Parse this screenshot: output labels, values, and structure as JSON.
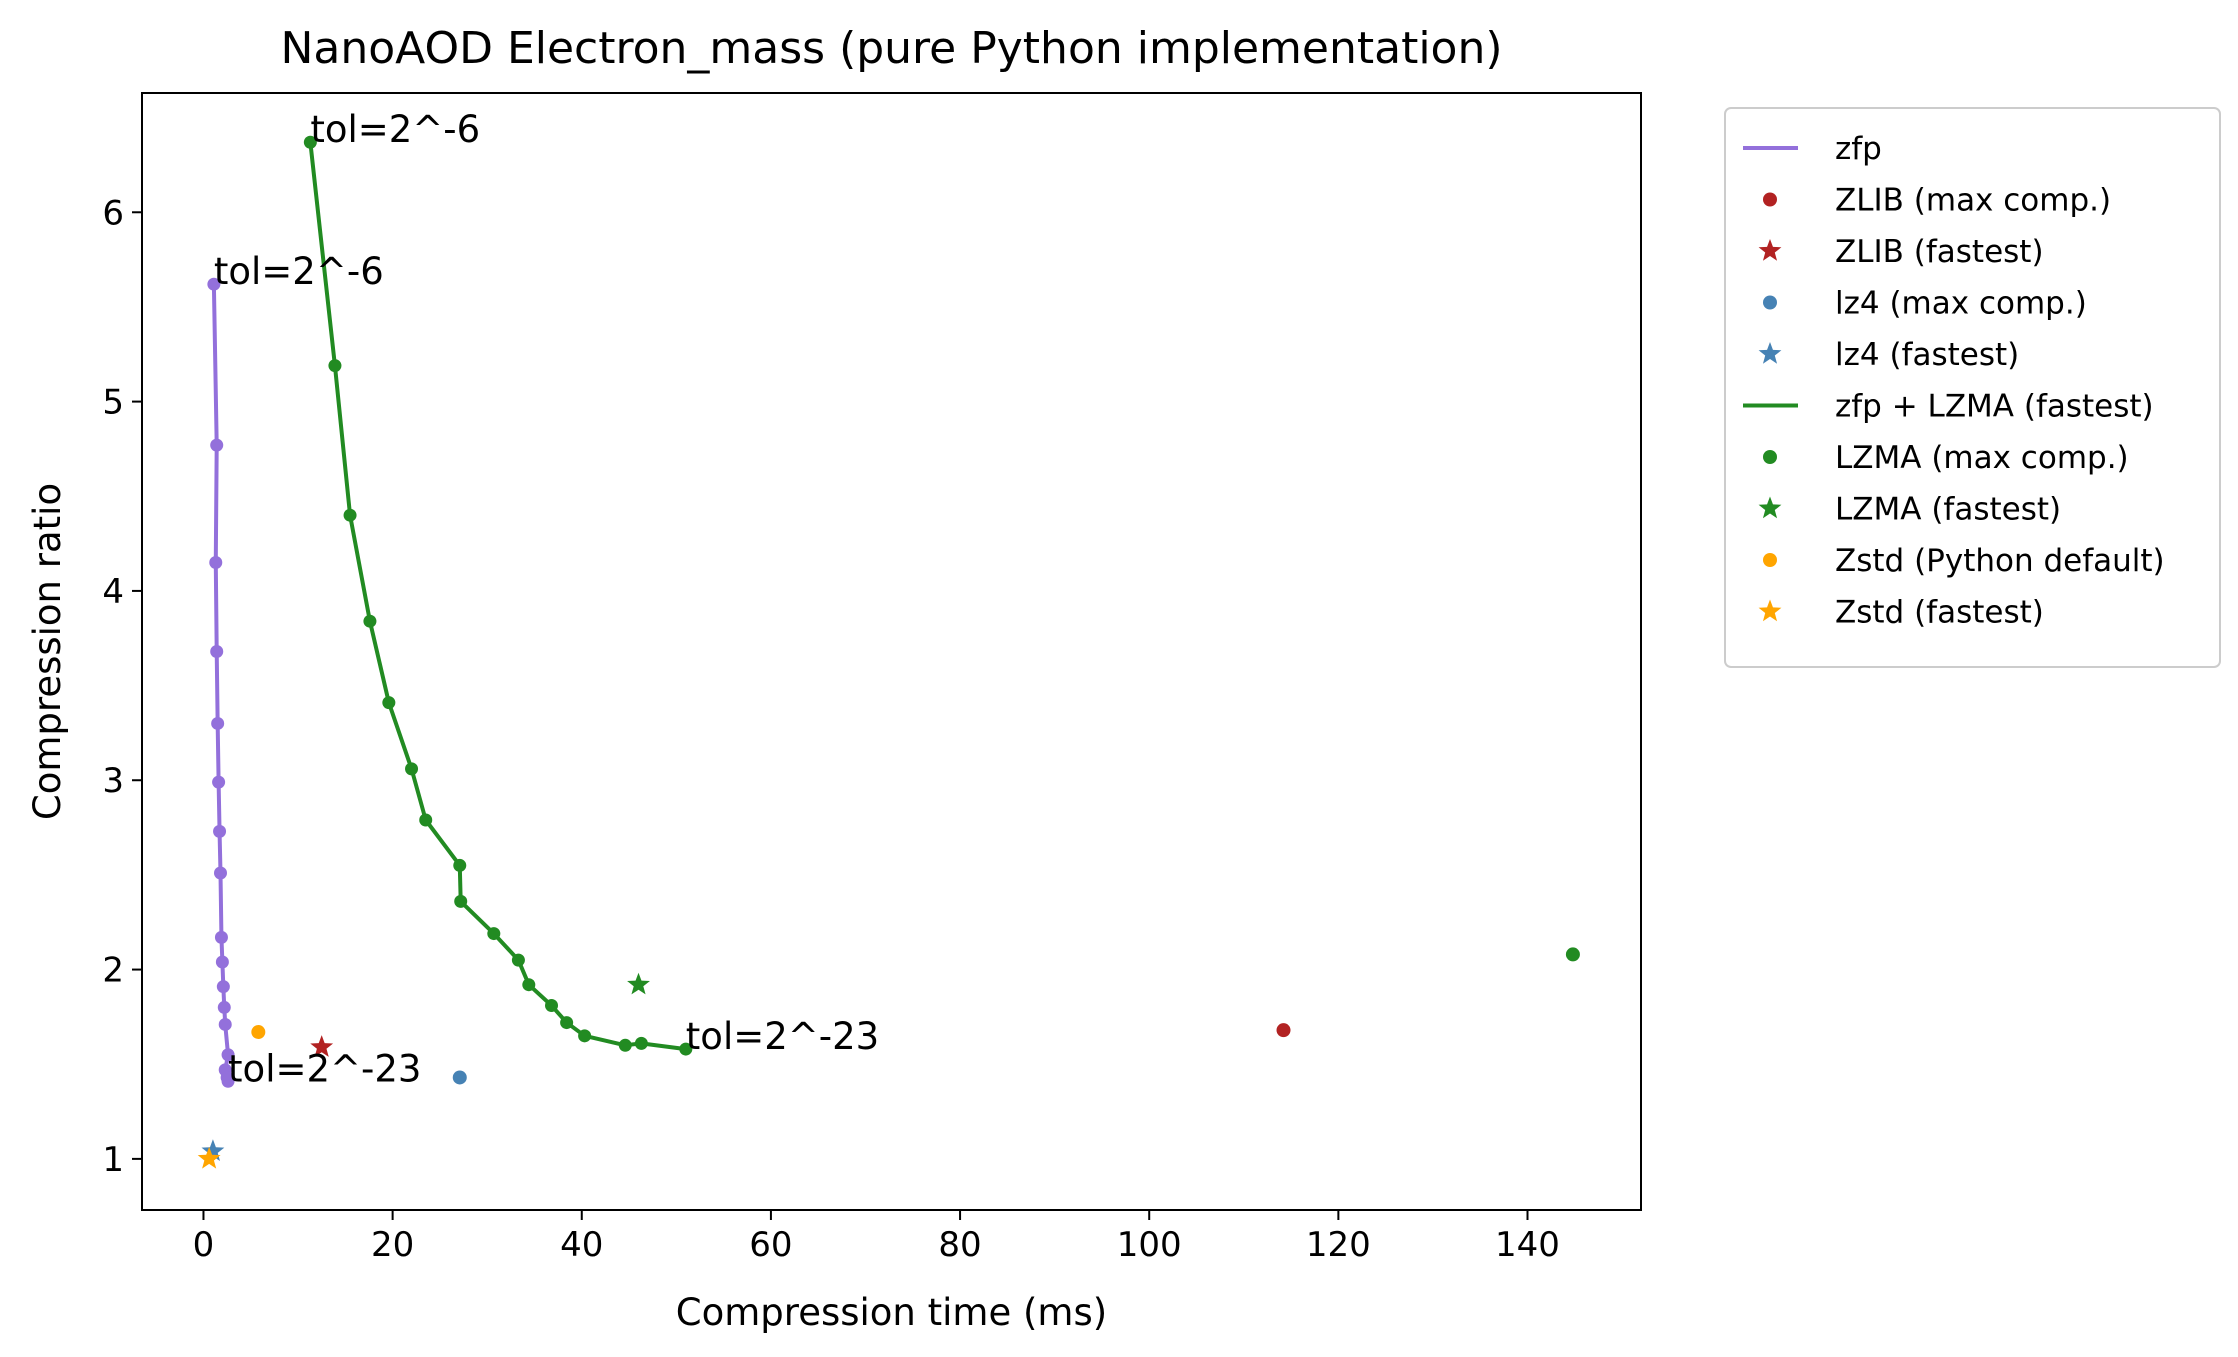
{
  "chart_data": {
    "type": "scatter",
    "title": "NanoAOD Electron_mass (pure Python implementation)",
    "xlabel": "Compression time (ms)",
    "ylabel": "Compression ratio",
    "xlim": [
      -6.5,
      152
    ],
    "ylim": [
      0.73,
      6.63
    ],
    "xticks": [
      0,
      20,
      40,
      60,
      80,
      100,
      120,
      140
    ],
    "yticks": [
      1,
      2,
      3,
      4,
      5,
      6
    ],
    "legend_position": "outside-right-top",
    "grid": false,
    "series": [
      {
        "name": "zfp",
        "kind": "line",
        "color": "#9370db",
        "x": [
          1.1,
          1.4,
          1.3,
          1.4,
          1.5,
          1.6,
          1.7,
          1.8,
          1.9,
          2.0,
          2.1,
          2.2,
          2.3,
          2.6,
          2.3,
          2.5,
          2.6
        ],
        "y": [
          5.62,
          4.77,
          4.15,
          3.68,
          3.3,
          2.99,
          2.73,
          2.51,
          2.17,
          2.04,
          1.91,
          1.8,
          1.71,
          1.55,
          1.47,
          1.43,
          1.41
        ]
      },
      {
        "name": "ZLIB (max comp.)",
        "kind": "point",
        "marker": "circle",
        "color": "#b22222",
        "x": [
          114.2
        ],
        "y": [
          1.68
        ]
      },
      {
        "name": "ZLIB (fastest)",
        "kind": "point",
        "marker": "star",
        "color": "#b22222",
        "x": [
          12.5
        ],
        "y": [
          1.59
        ]
      },
      {
        "name": "lz4 (max comp.)",
        "kind": "point",
        "marker": "circle",
        "color": "#4682b4",
        "x": [
          27.1
        ],
        "y": [
          1.43
        ]
      },
      {
        "name": "lz4 (fastest)",
        "kind": "point",
        "marker": "star",
        "color": "#4682b4",
        "x": [
          1.0
        ],
        "y": [
          1.04
        ]
      },
      {
        "name": "zfp + LZMA (fastest)",
        "kind": "line",
        "color": "#228b22",
        "x": [
          11.3,
          13.9,
          15.5,
          17.6,
          19.6,
          22.0,
          23.5,
          27.1,
          27.2,
          30.7,
          33.3,
          34.4,
          36.8,
          38.4,
          40.3,
          44.6,
          46.3,
          51.0
        ],
        "y": [
          6.37,
          5.19,
          4.4,
          3.84,
          3.41,
          3.06,
          2.79,
          2.55,
          2.36,
          2.19,
          2.05,
          1.92,
          1.81,
          1.72,
          1.65,
          1.6,
          1.61,
          1.58
        ]
      },
      {
        "name": "LZMA (max comp.)",
        "kind": "point",
        "marker": "circle",
        "color": "#228b22",
        "x": [
          144.8
        ],
        "y": [
          2.08
        ]
      },
      {
        "name": "LZMA (fastest)",
        "kind": "point",
        "marker": "star",
        "color": "#228b22",
        "x": [
          46.0
        ],
        "y": [
          1.92
        ]
      },
      {
        "name": "Zstd (Python default)",
        "kind": "point",
        "marker": "circle",
        "color": "#ffa500",
        "x": [
          5.8
        ],
        "y": [
          1.67
        ]
      },
      {
        "name": "Zstd (fastest)",
        "kind": "point",
        "marker": "star",
        "color": "#ffa500",
        "x": [
          0.6
        ],
        "y": [
          1.0
        ]
      }
    ],
    "annotations": [
      {
        "text": "tol=2^-6",
        "x": 11.3,
        "y": 6.37
      },
      {
        "text": "tol=2^-6",
        "x": 1.1,
        "y": 5.62
      },
      {
        "text": "tol=2^-23",
        "x": 51.0,
        "y": 1.58
      },
      {
        "text": "tol=2^-23",
        "x": 2.6,
        "y": 1.41
      }
    ]
  }
}
